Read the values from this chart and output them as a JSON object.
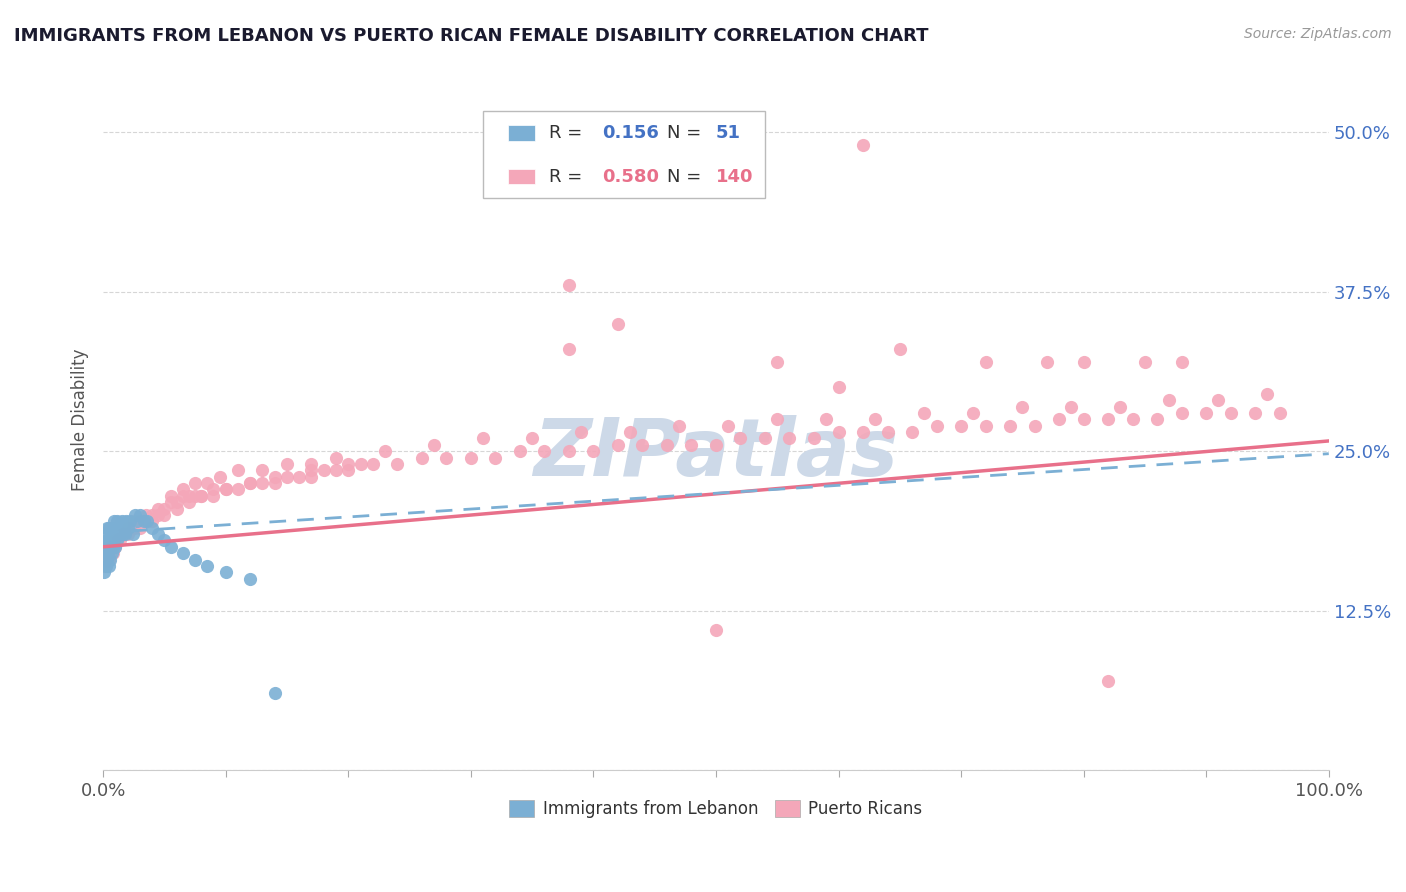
{
  "title": "IMMIGRANTS FROM LEBANON VS PUERTO RICAN FEMALE DISABILITY CORRELATION CHART",
  "source": "Source: ZipAtlas.com",
  "ylabel": "Female Disability",
  "xlim": [
    0.0,
    1.0
  ],
  "ylim": [
    0.0,
    0.55
  ],
  "yticks": [
    0.0,
    0.125,
    0.25,
    0.375,
    0.5
  ],
  "ytick_labels": [
    "",
    "12.5%",
    "25.0%",
    "37.5%",
    "50.0%"
  ],
  "legend_r1": "0.156",
  "legend_n1": "51",
  "legend_r2": "0.580",
  "legend_n2": "140",
  "color_blue": "#7bafd4",
  "color_pink": "#f4a7b9",
  "color_blue_line": "#7bafd4",
  "color_pink_line": "#e8708a",
  "title_color": "#1a1a2e",
  "axis_label_color": "#555555",
  "watermark_color": "#cdd9e8",
  "background_color": "#ffffff",
  "grid_color": "#cccccc",
  "blue_scatter_x": [
    0.001,
    0.001,
    0.002,
    0.002,
    0.002,
    0.003,
    0.003,
    0.003,
    0.004,
    0.004,
    0.005,
    0.005,
    0.005,
    0.006,
    0.006,
    0.007,
    0.007,
    0.008,
    0.008,
    0.009,
    0.009,
    0.01,
    0.01,
    0.011,
    0.011,
    0.012,
    0.013,
    0.014,
    0.015,
    0.016,
    0.017,
    0.018,
    0.019,
    0.02,
    0.022,
    0.024,
    0.026,
    0.028,
    0.03,
    0.033,
    0.036,
    0.04,
    0.045,
    0.05,
    0.055,
    0.065,
    0.075,
    0.085,
    0.1,
    0.12,
    0.14
  ],
  "blue_scatter_y": [
    0.155,
    0.17,
    0.16,
    0.175,
    0.185,
    0.165,
    0.18,
    0.19,
    0.17,
    0.18,
    0.16,
    0.175,
    0.19,
    0.165,
    0.18,
    0.17,
    0.185,
    0.175,
    0.19,
    0.18,
    0.195,
    0.175,
    0.185,
    0.18,
    0.195,
    0.185,
    0.19,
    0.185,
    0.195,
    0.185,
    0.19,
    0.185,
    0.195,
    0.19,
    0.195,
    0.185,
    0.2,
    0.195,
    0.2,
    0.195,
    0.195,
    0.19,
    0.185,
    0.18,
    0.175,
    0.17,
    0.165,
    0.16,
    0.155,
    0.15,
    0.06
  ],
  "pink_scatter_x": [
    0.001,
    0.002,
    0.003,
    0.004,
    0.005,
    0.006,
    0.007,
    0.008,
    0.009,
    0.01,
    0.012,
    0.014,
    0.016,
    0.018,
    0.02,
    0.025,
    0.03,
    0.035,
    0.04,
    0.045,
    0.05,
    0.055,
    0.06,
    0.065,
    0.07,
    0.075,
    0.08,
    0.09,
    0.1,
    0.11,
    0.12,
    0.13,
    0.14,
    0.15,
    0.16,
    0.17,
    0.18,
    0.19,
    0.2,
    0.21,
    0.22,
    0.24,
    0.26,
    0.28,
    0.3,
    0.32,
    0.34,
    0.36,
    0.38,
    0.4,
    0.42,
    0.44,
    0.46,
    0.48,
    0.5,
    0.52,
    0.54,
    0.56,
    0.58,
    0.6,
    0.62,
    0.64,
    0.66,
    0.68,
    0.7,
    0.72,
    0.74,
    0.76,
    0.78,
    0.8,
    0.82,
    0.84,
    0.86,
    0.88,
    0.9,
    0.92,
    0.94,
    0.96,
    0.005,
    0.015,
    0.025,
    0.035,
    0.045,
    0.055,
    0.065,
    0.075,
    0.085,
    0.095,
    0.11,
    0.13,
    0.15,
    0.17,
    0.19,
    0.23,
    0.27,
    0.31,
    0.35,
    0.39,
    0.43,
    0.47,
    0.51,
    0.55,
    0.59,
    0.63,
    0.67,
    0.71,
    0.75,
    0.79,
    0.83,
    0.87,
    0.91,
    0.95,
    0.38,
    0.42,
    0.38,
    0.55,
    0.6,
    0.65,
    0.72,
    0.77,
    0.8,
    0.85,
    0.88,
    0.01,
    0.02,
    0.03,
    0.04,
    0.05,
    0.06,
    0.07,
    0.08,
    0.09,
    0.1,
    0.12,
    0.14,
    0.17,
    0.2,
    0.5,
    0.82,
    0.62
  ],
  "pink_scatter_y": [
    0.16,
    0.165,
    0.17,
    0.17,
    0.165,
    0.17,
    0.175,
    0.17,
    0.175,
    0.175,
    0.18,
    0.18,
    0.185,
    0.185,
    0.19,
    0.19,
    0.195,
    0.195,
    0.2,
    0.2,
    0.205,
    0.21,
    0.21,
    0.215,
    0.215,
    0.215,
    0.215,
    0.22,
    0.22,
    0.22,
    0.225,
    0.225,
    0.225,
    0.23,
    0.23,
    0.23,
    0.235,
    0.235,
    0.235,
    0.24,
    0.24,
    0.24,
    0.245,
    0.245,
    0.245,
    0.245,
    0.25,
    0.25,
    0.25,
    0.25,
    0.255,
    0.255,
    0.255,
    0.255,
    0.255,
    0.26,
    0.26,
    0.26,
    0.26,
    0.265,
    0.265,
    0.265,
    0.265,
    0.27,
    0.27,
    0.27,
    0.27,
    0.27,
    0.275,
    0.275,
    0.275,
    0.275,
    0.275,
    0.28,
    0.28,
    0.28,
    0.28,
    0.28,
    0.175,
    0.185,
    0.195,
    0.2,
    0.205,
    0.215,
    0.22,
    0.225,
    0.225,
    0.23,
    0.235,
    0.235,
    0.24,
    0.24,
    0.245,
    0.25,
    0.255,
    0.26,
    0.26,
    0.265,
    0.265,
    0.27,
    0.27,
    0.275,
    0.275,
    0.275,
    0.28,
    0.28,
    0.285,
    0.285,
    0.285,
    0.29,
    0.29,
    0.295,
    0.38,
    0.35,
    0.33,
    0.32,
    0.3,
    0.33,
    0.32,
    0.32,
    0.32,
    0.32,
    0.32,
    0.18,
    0.185,
    0.19,
    0.195,
    0.2,
    0.205,
    0.21,
    0.215,
    0.215,
    0.22,
    0.225,
    0.23,
    0.235,
    0.24,
    0.11,
    0.07,
    0.49
  ]
}
